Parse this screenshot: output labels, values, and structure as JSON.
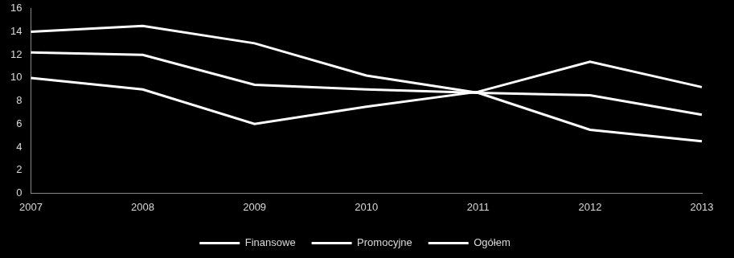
{
  "chart_data": {
    "type": "line",
    "categories": [
      "2007",
      "2008",
      "2009",
      "2010",
      "2011",
      "2012",
      "2013"
    ],
    "series": [
      {
        "name": "Finansowe",
        "color": "#ffffff",
        "values": [
          14,
          14.5,
          13,
          10.2,
          8.7,
          5.5,
          4.5
        ]
      },
      {
        "name": "Promocyjne",
        "color": "#ffffff",
        "values": [
          10,
          9,
          6,
          7.5,
          8.8,
          11.4,
          9.2
        ]
      },
      {
        "name": "Ogółem",
        "color": "#ffffff",
        "values": [
          12.2,
          12,
          9.4,
          9,
          8.7,
          8.5,
          6.8
        ]
      }
    ],
    "ylim": [
      0,
      16
    ],
    "yticks": [
      0,
      2,
      4,
      6,
      8,
      10,
      12,
      14,
      16
    ],
    "grid": false,
    "legend": "bottom"
  }
}
